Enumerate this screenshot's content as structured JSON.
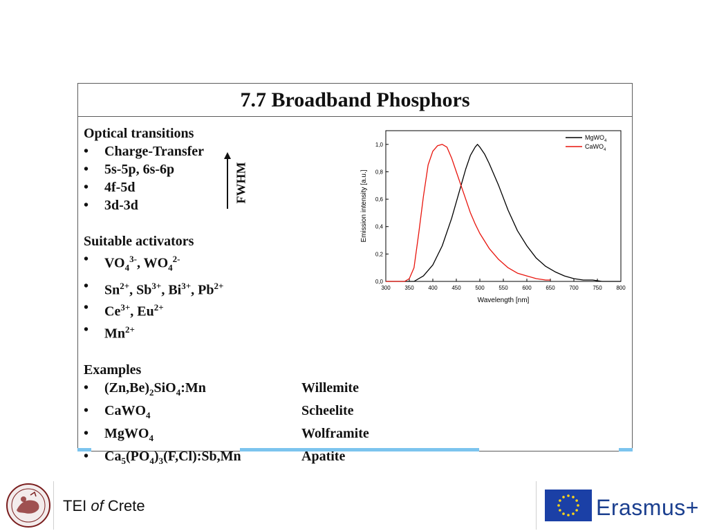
{
  "slide": {
    "title": "7.7 Broadband Phosphors",
    "optical": {
      "heading": "Optical transitions",
      "items": [
        "Charge-Transfer",
        "5s-5p, 6s-6p",
        "4f-5d",
        "3d-3d"
      ],
      "fwhm_label": "FWHM"
    },
    "activators": {
      "heading": "Suitable activators",
      "items": [
        {
          "parts": [
            [
              "VO",
              "n"
            ],
            [
              "4",
              "sub"
            ],
            [
              "3-",
              "sup"
            ],
            [
              ", WO",
              "n"
            ],
            [
              "4",
              "sub"
            ],
            [
              "2-",
              "sup"
            ]
          ]
        },
        {
          "parts": [
            [
              "Sn",
              "n"
            ],
            [
              "2+",
              "sup"
            ],
            [
              ", Sb",
              "n"
            ],
            [
              "3+",
              "sup"
            ],
            [
              ", Bi",
              "n"
            ],
            [
              "3+",
              "sup"
            ],
            [
              ", Pb",
              "n"
            ],
            [
              "2+",
              "sup"
            ]
          ]
        },
        {
          "parts": [
            [
              "Ce",
              "n"
            ],
            [
              "3+",
              "sup"
            ],
            [
              ", Eu",
              "n"
            ],
            [
              "2+",
              "sup"
            ]
          ]
        },
        {
          "parts": [
            [
              "Mn",
              "n"
            ],
            [
              "2+",
              "sup"
            ]
          ]
        }
      ]
    },
    "examples": {
      "heading": "Examples",
      "items": [
        {
          "parts": [
            [
              "(Zn,Be)",
              "n"
            ],
            [
              "2",
              "sub"
            ],
            [
              "SiO",
              "n"
            ],
            [
              "4",
              "sub"
            ],
            [
              ":Mn",
              "n"
            ]
          ],
          "mineral": "Willemite"
        },
        {
          "parts": [
            [
              "CaWO",
              "n"
            ],
            [
              "4",
              "sub"
            ]
          ],
          "mineral": "Scheelite"
        },
        {
          "parts": [
            [
              "MgWO",
              "n"
            ],
            [
              "4",
              "sub"
            ]
          ],
          "mineral": "Wolframite"
        },
        {
          "parts": [
            [
              "Ca",
              "n"
            ],
            [
              "5",
              "sub"
            ],
            [
              "(PO",
              "n"
            ],
            [
              "4",
              "sub"
            ],
            [
              ")",
              "n"
            ],
            [
              "3",
              "sub"
            ],
            [
              "(F,Cl):Sb,Mn",
              "n"
            ]
          ],
          "mineral": "Apatite"
        }
      ]
    }
  },
  "footer": {
    "institution_pre": "TEI ",
    "institution_of": "of",
    "institution_post": " Crete",
    "program": "Erasmus+"
  },
  "colors": {
    "mgwo4": "#000000",
    "cawo4": "#e8140c",
    "accent_stripe": "#7cc4ee",
    "eu_blue": "#1b40a6",
    "erasmus_text": "#1b3f8f"
  },
  "chart_data": {
    "type": "line",
    "xlabel": "Wavelength [nm]",
    "ylabel": "Emission intensity [a.u.]",
    "xlim": [
      300,
      800
    ],
    "ylim": [
      0.0,
      1.1
    ],
    "xticks": [
      300,
      350,
      400,
      450,
      500,
      550,
      600,
      650,
      700,
      750,
      800
    ],
    "yticks": [
      0.0,
      0.2,
      0.4,
      0.6,
      0.8,
      1.0
    ],
    "ytick_labels": [
      "0,0",
      "0,2",
      "0,4",
      "0,6",
      "0,8",
      "1,0"
    ],
    "grid": false,
    "legend": "top-right",
    "series": [
      {
        "name": "MgWO4",
        "name_base": "MgWO",
        "name_sub": "4",
        "color": "#000000",
        "x": [
          300,
          360,
          380,
          400,
          420,
          440,
          460,
          470,
          480,
          490,
          495,
          500,
          510,
          520,
          540,
          560,
          580,
          600,
          620,
          640,
          660,
          680,
          700,
          720,
          740,
          760,
          780,
          800
        ],
        "y": [
          0.0,
          0.0,
          0.04,
          0.12,
          0.26,
          0.46,
          0.7,
          0.82,
          0.92,
          0.98,
          1.0,
          0.98,
          0.93,
          0.86,
          0.7,
          0.52,
          0.37,
          0.26,
          0.17,
          0.11,
          0.07,
          0.04,
          0.02,
          0.01,
          0.01,
          0.0,
          0.0,
          0.0
        ]
      },
      {
        "name": "CaWO4",
        "name_base": "CaWO",
        "name_sub": "4",
        "color": "#e8140c",
        "x": [
          300,
          340,
          350,
          360,
          370,
          380,
          390,
          400,
          410,
          420,
          430,
          440,
          450,
          460,
          470,
          480,
          490,
          500,
          520,
          540,
          560,
          580,
          600,
          620,
          640,
          650
        ],
        "y": [
          0.0,
          0.0,
          0.02,
          0.1,
          0.35,
          0.62,
          0.85,
          0.95,
          0.99,
          1.0,
          0.98,
          0.9,
          0.8,
          0.7,
          0.6,
          0.5,
          0.42,
          0.35,
          0.24,
          0.16,
          0.1,
          0.06,
          0.04,
          0.02,
          0.01,
          0.01
        ]
      }
    ]
  }
}
